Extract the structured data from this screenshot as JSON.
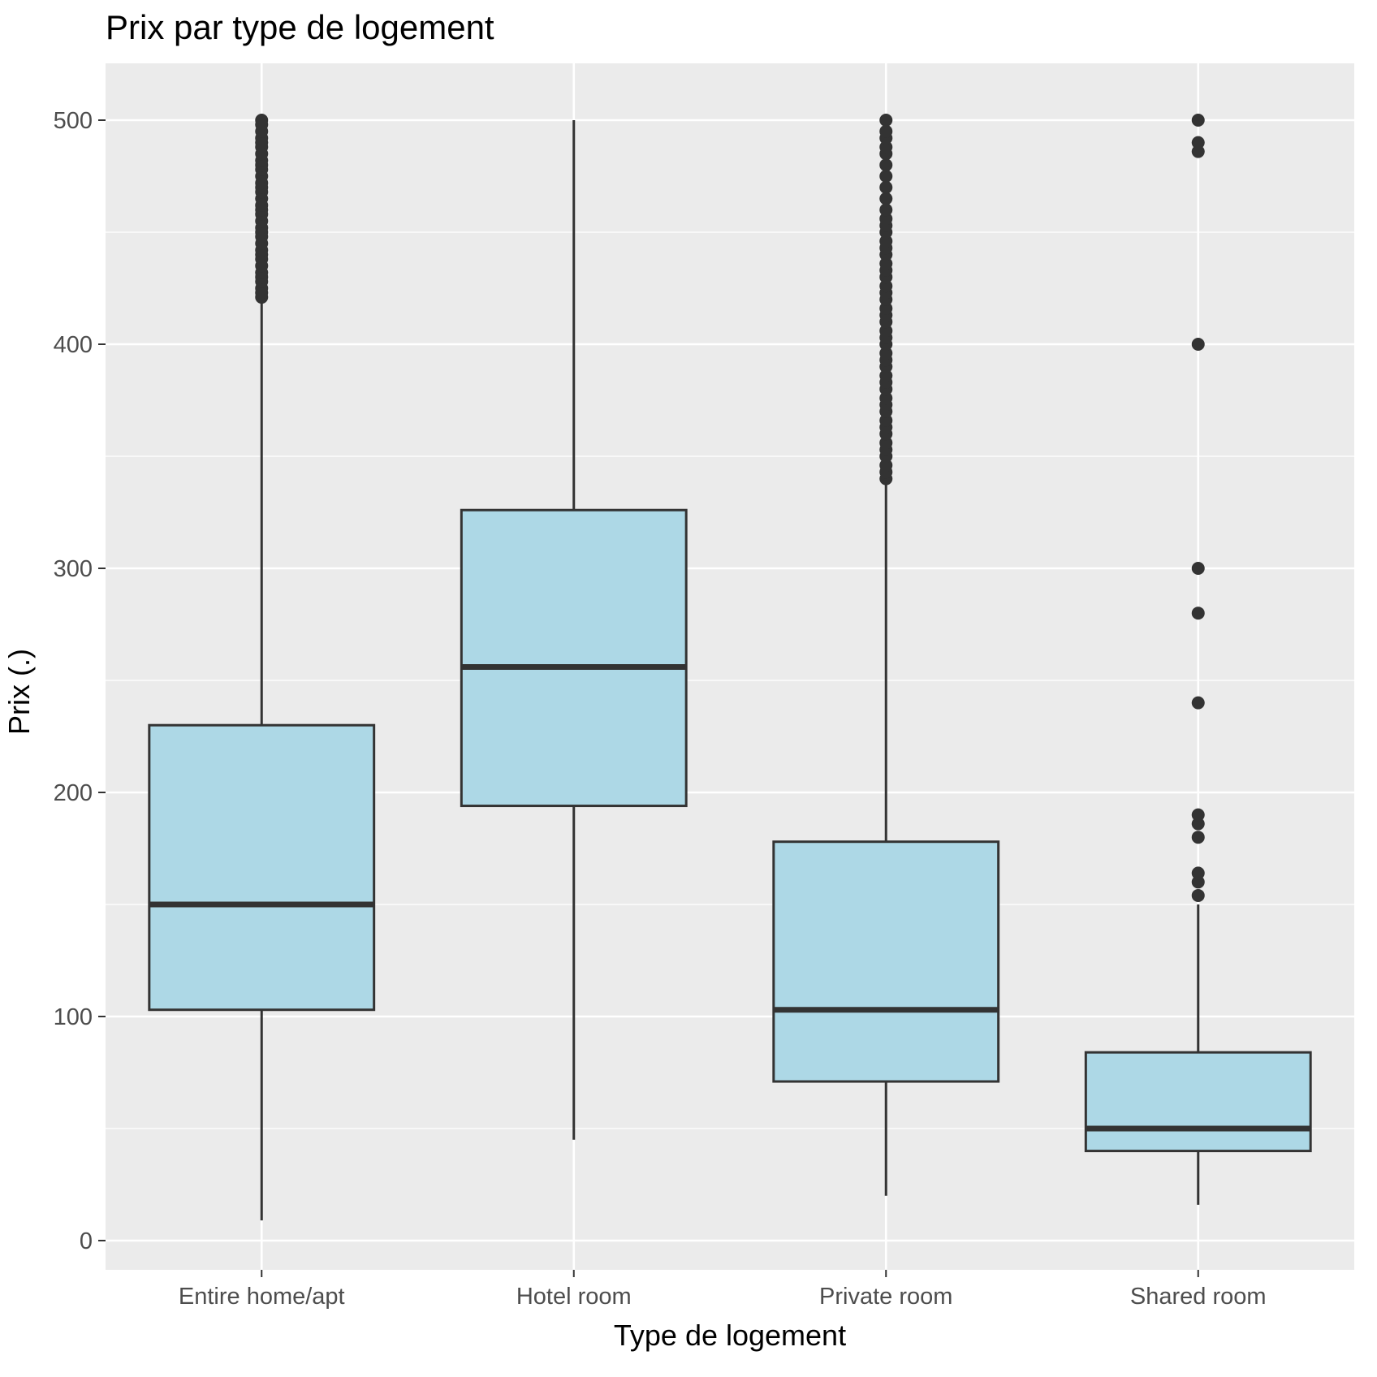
{
  "chart_data": {
    "type": "boxplot",
    "title": "Prix par type de logement",
    "xlabel": "Type de logement",
    "ylabel": "Prix (.)",
    "ylim": [
      -25,
      525
    ],
    "yticks": [
      0,
      100,
      200,
      300,
      400,
      500
    ],
    "grid": true,
    "colors": {
      "panel": "#ebebeb",
      "grid": "#ffffff",
      "box_fill": "#add8e6",
      "box_line": "#333333",
      "text": "#4d4d4d"
    },
    "categories": [
      "Entire home/apt",
      "Hotel room",
      "Private room",
      "Shared room"
    ],
    "boxes": [
      {
        "category": "Entire home/apt",
        "whisker_low": 9,
        "q1": 103,
        "median": 150,
        "q3": 230,
        "whisker_high": 420,
        "outliers": [
          421,
          423,
          425,
          428,
          430,
          432,
          435,
          438,
          440,
          442,
          445,
          448,
          450,
          452,
          455,
          458,
          460,
          462,
          465,
          468,
          470,
          472,
          475,
          478,
          480,
          482,
          485,
          488,
          490,
          492,
          495,
          498,
          500
        ]
      },
      {
        "category": "Hotel room",
        "whisker_low": 45,
        "q1": 194,
        "median": 256,
        "q3": 326,
        "whisker_high": 500,
        "outliers": []
      },
      {
        "category": "Private room",
        "whisker_low": 20,
        "q1": 71,
        "median": 103,
        "q3": 178,
        "whisker_high": 338,
        "outliers": [
          340,
          343,
          346,
          350,
          353,
          356,
          360,
          363,
          366,
          370,
          373,
          376,
          380,
          383,
          386,
          390,
          393,
          396,
          400,
          403,
          406,
          410,
          413,
          416,
          420,
          423,
          426,
          430,
          433,
          436,
          440,
          443,
          446,
          450,
          453,
          456,
          460,
          465,
          470,
          475,
          480,
          485,
          488,
          492,
          495,
          500
        ]
      },
      {
        "category": "Shared room",
        "whisker_low": 16,
        "q1": 40,
        "median": 50,
        "q3": 84,
        "whisker_high": 150,
        "outliers": [
          154,
          160,
          164,
          180,
          186,
          190,
          240,
          280,
          300,
          400,
          486,
          490,
          500
        ]
      }
    ]
  }
}
